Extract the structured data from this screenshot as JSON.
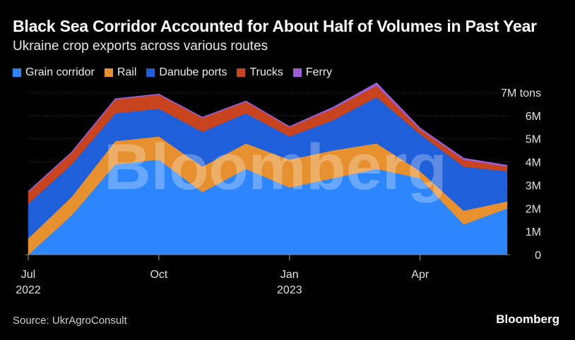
{
  "header": {
    "title": "Black Sea Corridor Accounted for About Half of Volumes in Past Year",
    "subtitle": "Ukraine crop exports across various routes"
  },
  "legend": [
    {
      "label": "Grain corridor",
      "color": "#2e86ff"
    },
    {
      "label": "Rail",
      "color": "#e6902f"
    },
    {
      "label": "Danube ports",
      "color": "#1f5fd9"
    },
    {
      "label": "Trucks",
      "color": "#c8441f"
    },
    {
      "label": "Ferry",
      "color": "#9c5fd8"
    }
  ],
  "footer": {
    "source": "Source: UkrAgroConsult",
    "brand": "Bloomberg"
  },
  "watermark": "Bloomberg",
  "chart_data": {
    "type": "area",
    "stacked": true,
    "x": [
      "2022-07",
      "2022-08",
      "2022-09",
      "2022-10",
      "2022-11",
      "2022-12",
      "2023-01",
      "2023-02",
      "2023-03",
      "2023-04",
      "2023-05",
      "2023-06"
    ],
    "series": [
      {
        "name": "Grain corridor",
        "color": "#2e86ff",
        "values": [
          0.0,
          1.7,
          3.9,
          4.1,
          2.7,
          3.7,
          2.9,
          3.3,
          3.7,
          3.3,
          1.3,
          2.0
        ]
      },
      {
        "name": "Rail",
        "color": "#e6902f",
        "values": [
          0.7,
          0.8,
          1.0,
          1.0,
          1.1,
          1.1,
          1.2,
          1.2,
          1.1,
          0.3,
          0.6,
          0.3
        ]
      },
      {
        "name": "Danube ports",
        "color": "#1f5fd9",
        "values": [
          1.5,
          1.4,
          1.2,
          1.2,
          1.5,
          1.3,
          1.0,
          1.3,
          2.0,
          1.6,
          1.9,
          1.3
        ]
      },
      {
        "name": "Trucks",
        "color": "#c8441f",
        "values": [
          0.5,
          0.5,
          0.6,
          0.6,
          0.6,
          0.5,
          0.4,
          0.5,
          0.5,
          0.2,
          0.3,
          0.2
        ]
      },
      {
        "name": "Ferry",
        "color": "#9c5fd8",
        "values": [
          0.02,
          0.02,
          0.02,
          0.02,
          0.02,
          0.02,
          0.02,
          0.05,
          0.1,
          0.05,
          0.05,
          0.05
        ]
      }
    ],
    "y_ticks": [
      {
        "value": 0,
        "label": "0"
      },
      {
        "value": 1,
        "label": "1M"
      },
      {
        "value": 2,
        "label": "2M"
      },
      {
        "value": 3,
        "label": "3M"
      },
      {
        "value": 4,
        "label": "4M"
      },
      {
        "value": 5,
        "label": "5M"
      },
      {
        "value": 6,
        "label": "6M"
      },
      {
        "value": 7,
        "label": "7M tons"
      }
    ],
    "x_ticks": [
      {
        "x": "2022-07",
        "label": "Jul",
        "sublabel": "2022"
      },
      {
        "x": "2022-10",
        "label": "Oct",
        "sublabel": ""
      },
      {
        "x": "2023-01",
        "label": "Jan",
        "sublabel": "2023"
      },
      {
        "x": "2023-04",
        "label": "Apr",
        "sublabel": ""
      }
    ],
    "ylim": [
      0,
      7
    ],
    "grid": true
  }
}
